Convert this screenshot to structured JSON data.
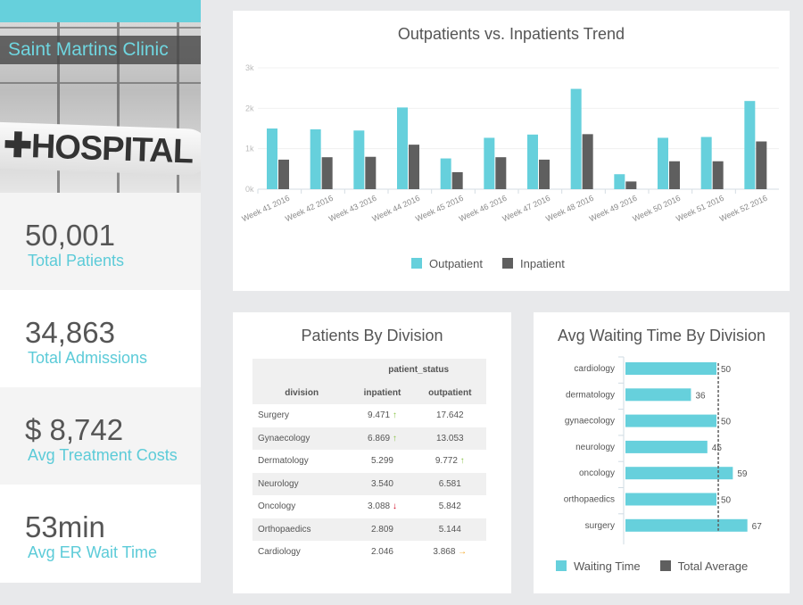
{
  "clinic": {
    "name": "Saint Martins Clinic",
    "photo_sign": "HOSPITAL"
  },
  "kpis": [
    {
      "value": "50,001",
      "label": "Total Patients"
    },
    {
      "value": "34,863",
      "label": "Total Admissions"
    },
    {
      "value": "$ 8,742",
      "label": "Avg Treatment Costs"
    },
    {
      "value": "53min",
      "label": "Avg ER Wait Time"
    }
  ],
  "colors": {
    "accent": "#66d0dc",
    "dark": "#5f5f5f",
    "up": "#8bc34a",
    "down": "#d0021b",
    "neutral": "#f5a623"
  },
  "chart_data": [
    {
      "type": "bar",
      "title": "Outpatients vs. Inpatients Trend",
      "categories": [
        "Week 41 2016",
        "Week 42 2016",
        "Week 43 2016",
        "Week 44 2016",
        "Week 45 2016",
        "Week 46 2016",
        "Week 47 2016",
        "Week 48 2016",
        "Week 49 2016",
        "Week 50 2016",
        "Week 51 2016",
        "Week 52 2016"
      ],
      "yticks": [
        "0k",
        "1k",
        "2k",
        "3k"
      ],
      "ylim": [
        0,
        3000
      ],
      "grid": true,
      "legend": "bottom",
      "series": [
        {
          "name": "Outpatient",
          "color": "#66d0dc",
          "values": [
            1500,
            1480,
            1450,
            2020,
            760,
            1270,
            1350,
            2480,
            370,
            1270,
            1290,
            2180
          ]
        },
        {
          "name": "Inpatient",
          "color": "#5f5f5f",
          "values": [
            730,
            790,
            800,
            1100,
            420,
            790,
            730,
            1360,
            190,
            690,
            690,
            1180
          ]
        }
      ]
    },
    {
      "type": "bar",
      "orientation": "horizontal",
      "title": "Avg Waiting Time By Division",
      "categories": [
        "cardiology",
        "dermatology",
        "gynaecology",
        "neurology",
        "oncology",
        "orthopaedics",
        "surgery"
      ],
      "series": [
        {
          "name": "Waiting Time",
          "color": "#66d0dc",
          "values": [
            50,
            36,
            50,
            45,
            59,
            50,
            67
          ]
        }
      ],
      "reference": {
        "name": "Total Average",
        "value": 51,
        "color": "#5f5f5f"
      },
      "xlim": [
        0,
        70
      ],
      "legend": "bottom"
    }
  ],
  "division_table": {
    "title": "Patients By Division",
    "group_header": "patient_status",
    "columns": [
      "division",
      "inpatient",
      "outpatient"
    ],
    "rows": [
      {
        "division": "Surgery",
        "inpatient": "9.471",
        "in_trend": "up",
        "outpatient": "17.642",
        "out_trend": ""
      },
      {
        "division": "Gynaecology",
        "inpatient": "6.869",
        "in_trend": "up",
        "outpatient": "13.053",
        "out_trend": ""
      },
      {
        "division": "Dermatology",
        "inpatient": "5.299",
        "in_trend": "",
        "outpatient": "9.772",
        "out_trend": "up"
      },
      {
        "division": "Neurology",
        "inpatient": "3.540",
        "in_trend": "",
        "outpatient": "6.581",
        "out_trend": ""
      },
      {
        "division": "Oncology",
        "inpatient": "3.088",
        "in_trend": "down",
        "outpatient": "5.842",
        "out_trend": ""
      },
      {
        "division": "Orthopaedics",
        "inpatient": "2.809",
        "in_trend": "",
        "outpatient": "5.144",
        "out_trend": ""
      },
      {
        "division": "Cardiology",
        "inpatient": "2.046",
        "in_trend": "",
        "outpatient": "3.868",
        "out_trend": "right"
      }
    ]
  }
}
